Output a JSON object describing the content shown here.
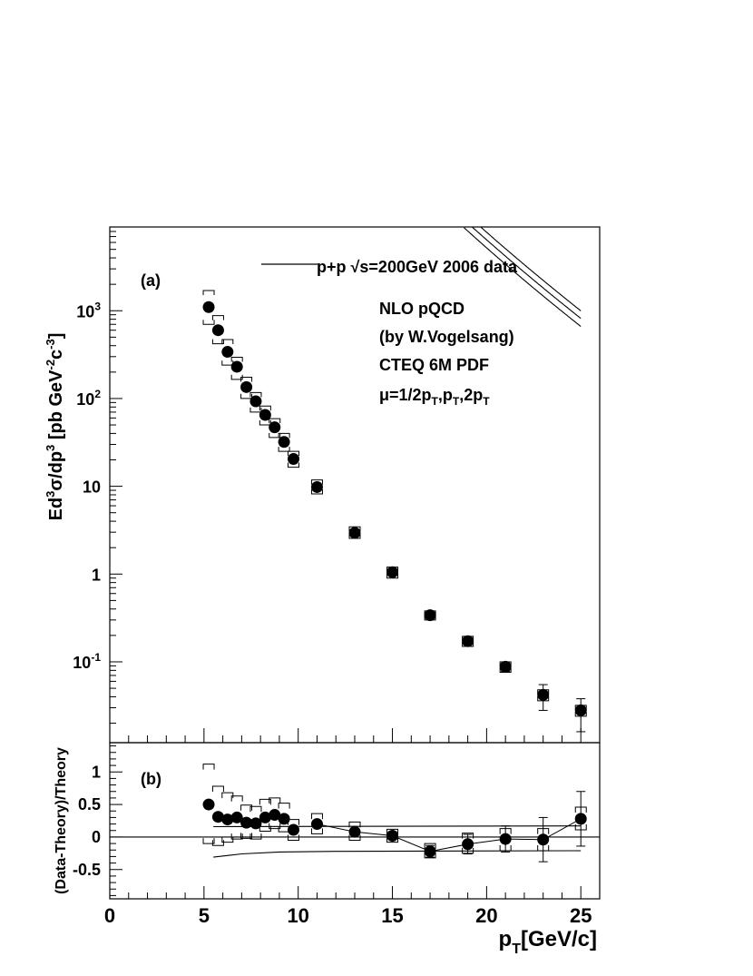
{
  "chart_data": [
    {
      "panel_label": "(a)",
      "type": "scatter",
      "y_scale": "log",
      "xlim": [
        0,
        26
      ],
      "ylim": [
        0.012,
        9000
      ],
      "x_ticks": [
        0,
        5,
        10,
        15,
        20,
        25
      ],
      "x_tick_labels": [
        "0",
        "5",
        "10",
        "15",
        "20",
        "25"
      ],
      "y_label": {
        "pre": "Ed",
        "s1": "3",
        "mid": "σ/dp",
        "s2": "3",
        "unit": " [pb GeV",
        "s3": "-2",
        "c": "c",
        "s4": "-3",
        "end": "]"
      },
      "y_tick_labels": [
        {
          "value": 0.1,
          "base": "10",
          "exp": "-1"
        },
        {
          "value": 1,
          "base": "1",
          "exp": ""
        },
        {
          "value": 10,
          "base": "10",
          "exp": ""
        },
        {
          "value": 100,
          "base": "10",
          "exp": "2"
        },
        {
          "value": 1000,
          "base": "10",
          "exp": "3"
        }
      ],
      "legend": {
        "location": "top-right",
        "data_entry": {
          "pre": "p+p  ",
          "radical": "√",
          "post": "s=200GeV 2006 data"
        },
        "theory_lines": [
          "NLO pQCD",
          "(by W.Vogelsang)",
          "CTEQ 6M PDF"
        ],
        "scale_entry": {
          "mu": "μ",
          "text": "=1/2p",
          "sub1": "T",
          "t2": ",p",
          "sub2": "T",
          "t3": ",2p",
          "sub3": "T"
        }
      },
      "series": [
        {
          "name": "p+p √s=200GeV 2006 data",
          "x": [
            5.25,
            5.75,
            6.25,
            6.75,
            7.25,
            7.75,
            8.25,
            8.75,
            9.25,
            9.75,
            11,
            13,
            15,
            17,
            19,
            21,
            23,
            25
          ],
          "y": [
            1100,
            600,
            340,
            230,
            135,
            93,
            65,
            47,
            32,
            20.5,
            9.8,
            2.95,
            1.05,
            0.34,
            0.172,
            0.088,
            0.042,
            0.028
          ],
          "sys_low": [
            700,
            420,
            240,
            165,
            100,
            70,
            50,
            36,
            25,
            16.5,
            8.2,
            2.55,
            0.9,
            0.3,
            0.15,
            0.076,
            0.036,
            0.024
          ],
          "sys_high": [
            1700,
            880,
            470,
            295,
            175,
            117,
            82,
            59,
            40,
            25,
            11.8,
            3.45,
            1.2,
            0.38,
            0.195,
            0.1,
            0.048,
            0.032
          ],
          "stat_low": [
            1100,
            600,
            340,
            230,
            135,
            93,
            65,
            47,
            32,
            20.5,
            9.8,
            2.95,
            1.05,
            0.34,
            0.16,
            0.078,
            0.028,
            0.016
          ],
          "stat_high": [
            1100,
            600,
            340,
            230,
            135,
            93,
            65,
            47,
            32,
            20.5,
            9.8,
            2.95,
            1.05,
            0.34,
            0.182,
            0.1,
            0.055,
            0.038
          ]
        },
        {
          "name": "NLO pQCD μ=1/2pT",
          "kind": "curve",
          "scale": 1.22
        },
        {
          "name": "NLO pQCD μ=pT",
          "kind": "curve",
          "scale": 1.0
        },
        {
          "name": "NLO pQCD μ=2pT",
          "kind": "curve",
          "scale": 0.81
        }
      ]
    },
    {
      "panel_label": "(b)",
      "type": "scatter",
      "xlim": [
        0,
        26
      ],
      "ylim": [
        -0.95,
        1.45
      ],
      "xlabel_main": "p",
      "xlabel_sub": "T",
      "xlabel_rest": "[GeV/c]",
      "ylabel": "(Data-Theory)/Theory",
      "x_ticks": [
        0,
        5,
        10,
        15,
        20,
        25
      ],
      "x_tick_labels": [
        "0",
        "5",
        "10",
        "15",
        "20",
        "25"
      ],
      "y_ticks": [
        -0.5,
        0,
        0.5,
        1
      ],
      "y_tick_labels": [
        "-0.5",
        "0",
        "0.5",
        "1"
      ],
      "series": [
        {
          "name": "ratio",
          "x": [
            5.25,
            5.75,
            6.25,
            6.75,
            7.25,
            7.75,
            8.25,
            8.75,
            9.25,
            9.75,
            11,
            13,
            15,
            17,
            19,
            21,
            23,
            25
          ],
          "y": [
            0.5,
            0.31,
            0.27,
            0.3,
            0.22,
            0.21,
            0.3,
            0.34,
            0.28,
            0.11,
            0.2,
            0.08,
            0.02,
            -0.22,
            -0.11,
            -0.03,
            -0.04,
            0.28
          ],
          "stat_err": [
            0,
            0,
            0,
            0,
            0,
            0,
            0,
            0,
            0,
            0,
            0,
            0,
            0.06,
            0.09,
            0.15,
            0.2,
            0.34,
            0.42
          ],
          "sys_high": [
            1.12,
            0.78,
            0.68,
            0.63,
            0.49,
            0.47,
            0.58,
            0.6,
            0.52,
            0.27,
            0.36,
            0.23,
            0.12,
            -0.1,
            0.06,
            0.13,
            0.13,
            0.46
          ],
          "sys_low": [
            -0.1,
            -0.13,
            -0.08,
            -0.03,
            -0.02,
            -0.03,
            0.09,
            0.13,
            0.08,
            -0.05,
            0.05,
            -0.05,
            -0.08,
            -0.32,
            -0.25,
            -0.21,
            -0.21,
            0.11
          ]
        },
        {
          "name": "upper scale band",
          "x": [
            5.5,
            25
          ],
          "y": [
            0.16,
            0.17
          ]
        },
        {
          "name": "lower scale band",
          "x": [
            5.5,
            7,
            9,
            12,
            25
          ],
          "y": [
            -0.31,
            -0.26,
            -0.23,
            -0.22,
            -0.21
          ]
        },
        {
          "name": "zero line",
          "x": [
            0,
            26
          ],
          "y": [
            0,
            0
          ]
        }
      ]
    }
  ]
}
